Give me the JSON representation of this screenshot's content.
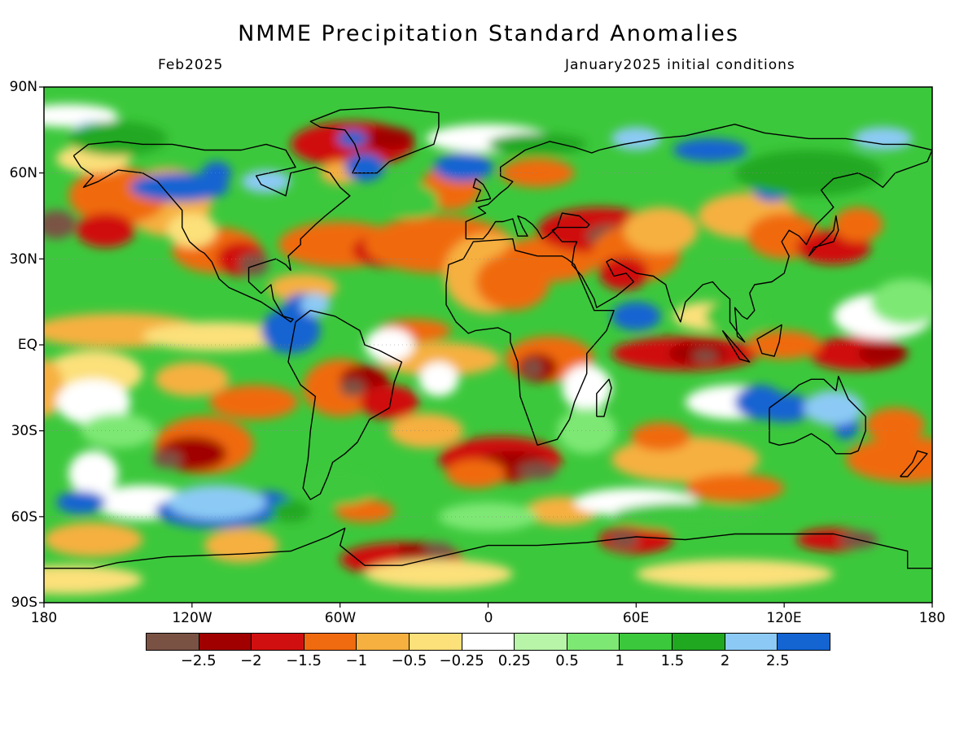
{
  "title": "NMME Precipitation Standard Anomalies",
  "subtitle_left": "Feb2025",
  "subtitle_right": "January2025 initial conditions",
  "lat_labels": [
    "90N",
    "60N",
    "30N",
    "EQ",
    "30S",
    "60S",
    "90S"
  ],
  "lon_labels": [
    "180",
    "120W",
    "60W",
    "0",
    "60E",
    "120E",
    "180"
  ],
  "colorbar": {
    "colors": [
      "#7a5244",
      "#a00000",
      "#d01010",
      "#f06a10",
      "#f6b040",
      "#fce07a",
      "#ffffff",
      "#b8f5a8",
      "#7ee874",
      "#3cc83c",
      "#20a820",
      "#8ccaf5",
      "#1464d2"
    ],
    "labels": [
      "-2.5",
      "-2",
      "-1.5",
      "-1",
      "-0.5",
      "-0.25",
      "0.25",
      "0.5",
      "1",
      "1.5",
      "2",
      "2.5"
    ]
  },
  "map": {
    "projection": "equirectangular",
    "lon_range": [
      -180,
      180
    ],
    "lat_range": [
      -90,
      90
    ],
    "background_color": "#3cc83c"
  }
}
